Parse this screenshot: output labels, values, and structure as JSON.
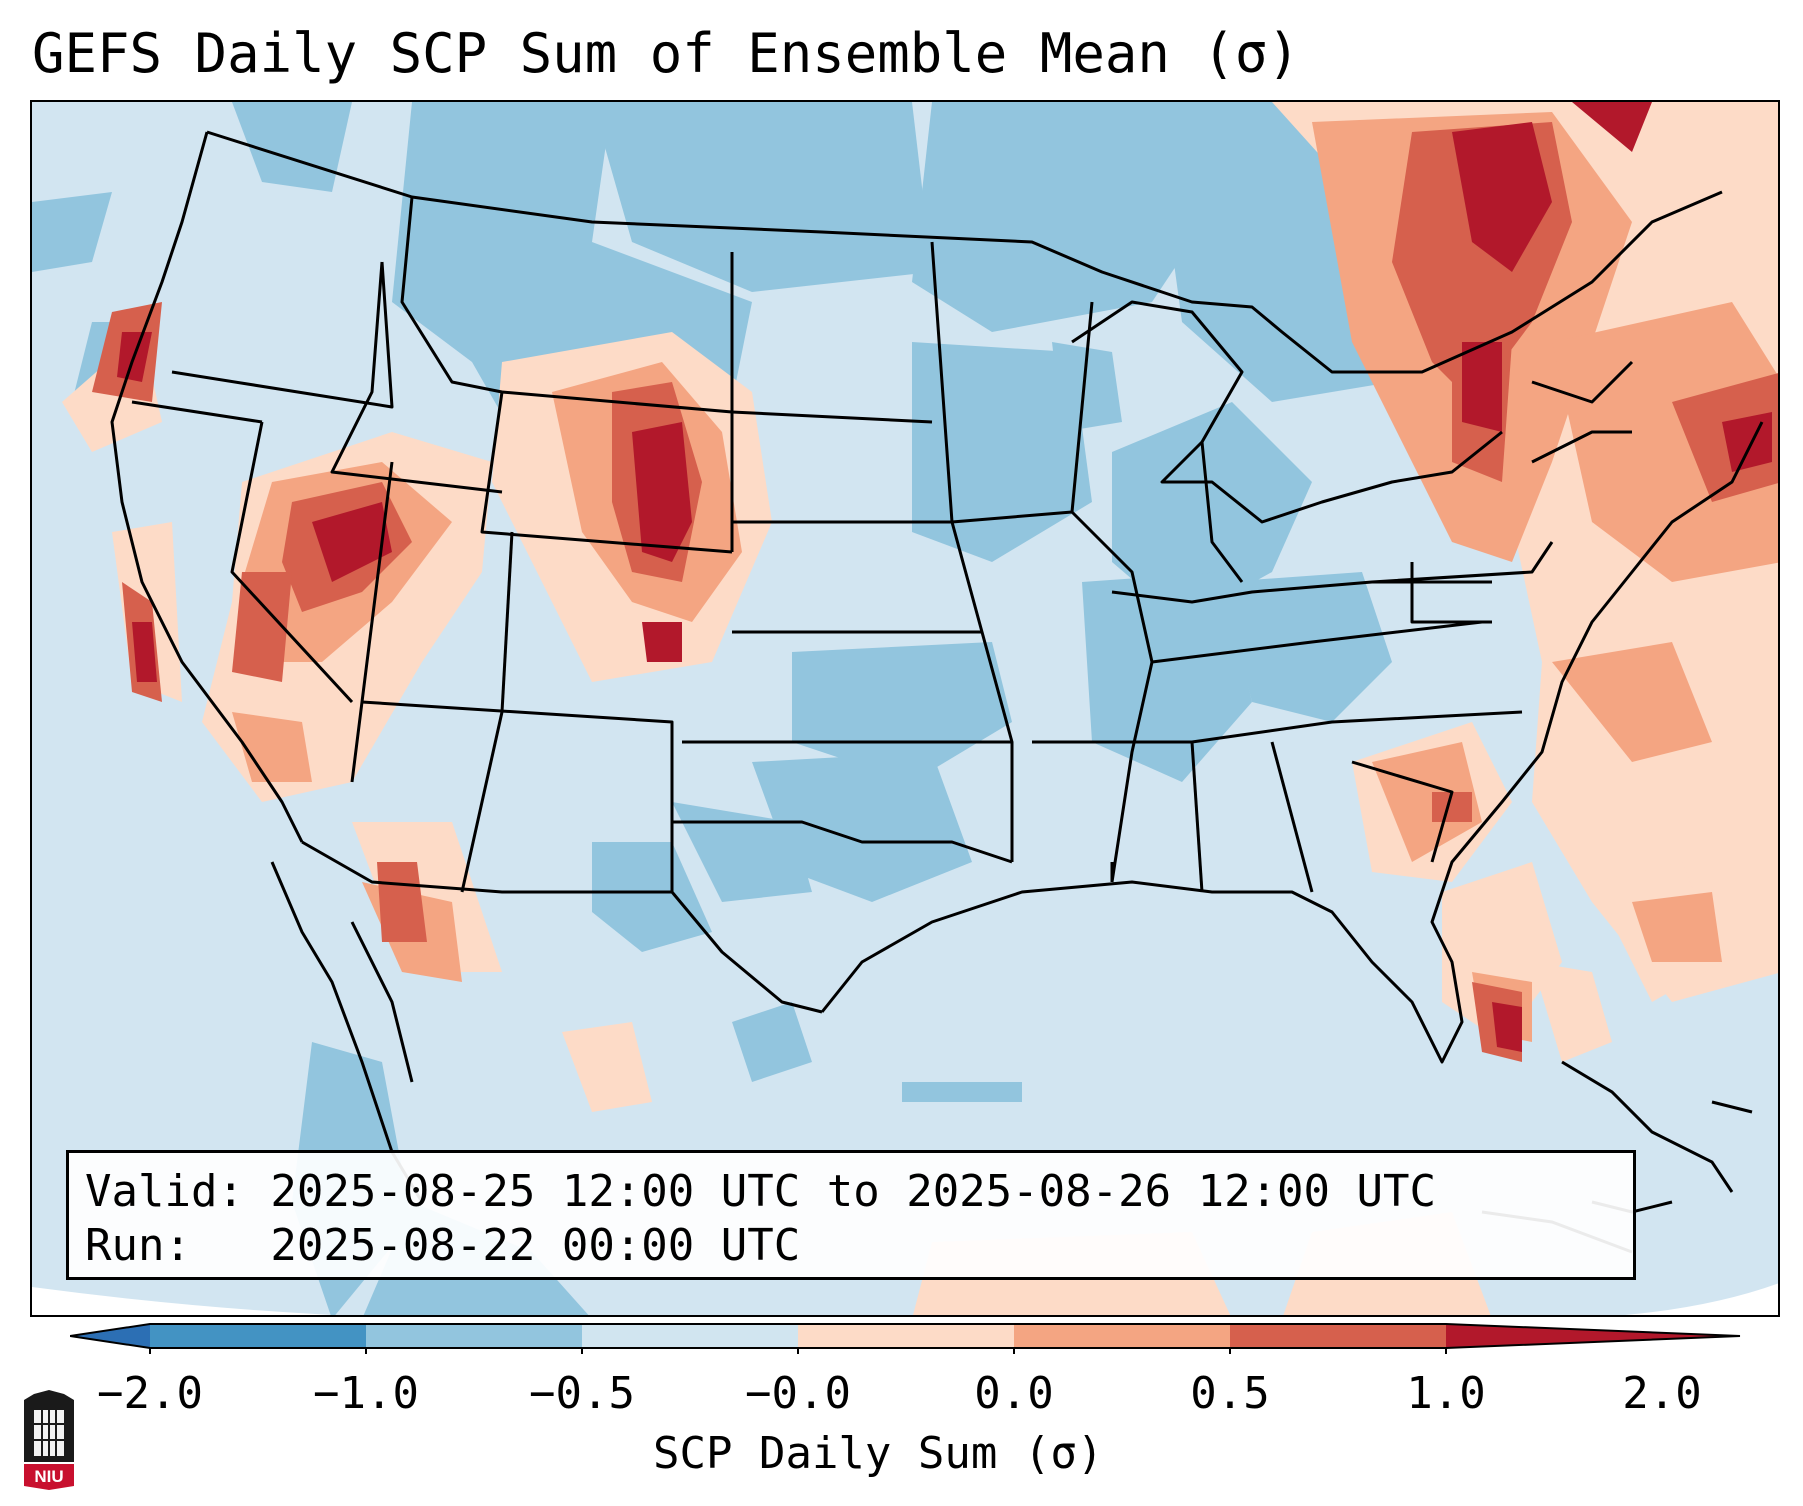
{
  "title": "GEFS Daily SCP Sum of Ensemble Mean (σ)",
  "info": {
    "valid_line": "Valid: 2025-08-25 12:00 UTC to 2025-08-26 12:00 UTC",
    "run_line": "Run:   2025-08-22 00:00 UTC"
  },
  "colorbar": {
    "label": "SCP Daily Sum (σ)",
    "ticks": [
      "−2.0",
      "−1.0",
      "−0.5",
      "−0.0",
      "0.0",
      "0.5",
      "1.0",
      "2.0"
    ],
    "colors": {
      "below_min": "#2c6fb4",
      "neg2_to_neg1": "#4393c3",
      "neg1_to_neg05": "#92c5de",
      "neg05_to_0": "#d1e5f0",
      "zero_to_05": "#fddbc7",
      "half_to_1": "#f4a582",
      "one_to_2": "#d6604d",
      "above_max": "#b2182b"
    }
  },
  "logo": {
    "text": "NIU",
    "description_icon": "university-seal-icon"
  },
  "map": {
    "region": "Contiguous United States",
    "ocean_color": "#d2e5f1",
    "outline_color": "#000000"
  }
}
